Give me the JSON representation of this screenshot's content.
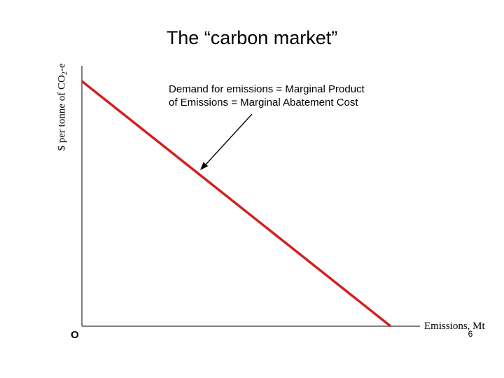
{
  "title": "The “carbon market”",
  "y_axis": {
    "prefix": "$ per tonne of CO",
    "subscript": "2",
    "suffix": "-e"
  },
  "x_axis": {
    "label": "Emissions, Mt"
  },
  "origin_label": "O",
  "annotation": {
    "line1": "Demand for emissions = Marginal Product",
    "line2": "of Emissions = Marginal Abatement Cost"
  },
  "page_number": "6",
  "colors": {
    "demand_curve": "#d42020",
    "axes": "#000000",
    "background": "#ffffff"
  }
}
